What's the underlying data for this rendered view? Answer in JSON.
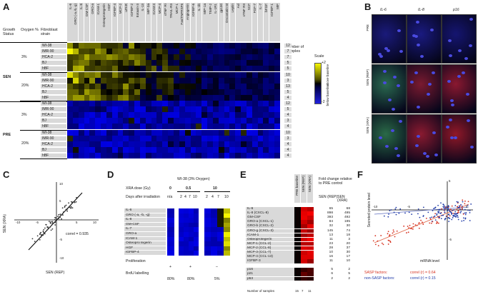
{
  "panels": [
    "A",
    "B",
    "C",
    "D",
    "E",
    "F"
  ],
  "A": {
    "headers": {
      "growth_status": "Growth Status",
      "oxygen": "Oxygen %",
      "fibroblast": "Fibroblast strain",
      "num_samples": "Number of samples"
    },
    "columns": [
      "IL-6",
      "GRO (-a,-b,-g)",
      "IL-8",
      "GM-CSF",
      "GRO-a",
      "ICAM-1",
      "Osteoprotegerin",
      "HGF",
      "IGFBP-4",
      "MCP-2",
      "uPAR",
      "IGFBP-2",
      "Eotaxin-3",
      "IL-13",
      "MIP-3a",
      "ICAM-3",
      "MCP-4",
      "sTNF RI",
      "TRAIL-R3",
      "MCP-1",
      "Fas/TNFRSF6",
      "Angiogenin",
      "IGFBP-6",
      "IL-1b",
      "MIP-1a",
      "TIMP-2",
      "IL-1R1",
      "gp130",
      "Oncostatin M",
      "Leptin",
      "Axl",
      "sTNF RII",
      "SCF",
      "FGF-7",
      "IL-7",
      "bFGF",
      "IGFBP-1",
      "MIF"
    ],
    "groups": [
      {
        "status": "SEN",
        "oxygen": "3%",
        "strains": [
          "WI-38",
          "IMR-90",
          "HCA-2",
          "BJ",
          "hBF"
        ],
        "counts": [
          "12",
          "7",
          "7",
          "5",
          "5"
        ]
      },
      {
        "status": "SEN",
        "oxygen": "20%",
        "strains": [
          "WI-38",
          "IMR-90",
          "HCA-2",
          "BJ",
          "hBF"
        ],
        "counts": [
          "10",
          "3",
          "13",
          "5",
          "4"
        ]
      },
      {
        "status": "PRE",
        "oxygen": "3%",
        "strains": [
          "WI-38",
          "IMR-90",
          "HCA-2",
          "BJ",
          "hBF"
        ],
        "counts": [
          "12",
          "5",
          "4",
          "3",
          "4"
        ]
      },
      {
        "status": "PRE",
        "oxygen": "20%",
        "strains": [
          "WI-38",
          "IMR-90",
          "HCA-2",
          "BJ",
          "hBF"
        ],
        "counts": [
          "10",
          "3",
          "4",
          "4",
          "4"
        ]
      }
    ],
    "scale": {
      "title": "Scale",
      "top": "+2",
      "bottom": "-2",
      "above": "above baseline",
      "below": "below baseline"
    }
  },
  "B": {
    "columns": [
      "IL-6",
      "IL-8",
      "p16"
    ],
    "rows": [
      "PRE",
      "SEN (REP)",
      "SEN (XRA)"
    ]
  },
  "C": {
    "xlabel": "SEN (REP)",
    "ylabel": "SEN (XRA)",
    "annotation": "correl = 0.935",
    "ticks": [
      "-10",
      "-5",
      "5",
      "10"
    ]
  },
  "D": {
    "title": "WI-38 (3% Oxygen)",
    "xra_label": "XRA dose (Gy)",
    "doses": [
      "0",
      "0.5",
      "10"
    ],
    "days_label": "Days after irradiation",
    "days": [
      "n/a",
      "2",
      "4",
      "7",
      "10",
      "2",
      "4",
      "7",
      "10"
    ],
    "genes": [
      "IL-6",
      "GRO (-a, -b, -g)",
      "IL-8",
      "GM-CSF",
      "IL-7",
      "GRO-a",
      "ICAM-1",
      "Osteopro tegerin",
      "HGF",
      "IGFBP-4"
    ],
    "proliferation_label": "Proliferation",
    "proliferation": [
      "+",
      "+",
      "–"
    ],
    "brdu_label": "BrdU labelling",
    "brdu": [
      "80%",
      "80%",
      "5%"
    ]
  },
  "E": {
    "col_headers": [
      "PRE baseline",
      "SEN (REP)",
      "SEN (XRA)"
    ],
    "fold_title": "Fold change relative to PRE control",
    "fold_cols": [
      "SEN (REP)",
      "SEN (XRA)"
    ],
    "genes": [
      {
        "name": "IL-6",
        "rep": "65",
        "xra": "68"
      },
      {
        "name": "IL-8       (CXCL-8)",
        "rep": "898",
        "xra": "495"
      },
      {
        "name": "GM-CSF",
        "rep": "393",
        "xra": "492"
      },
      {
        "name": "GRO-a (CXCL-1)",
        "rep": "84",
        "xra": "195"
      },
      {
        "name": "GRO-b (CXCL-2)",
        "rep": "32",
        "xra": "30"
      },
      {
        "name": "GRO-g (CXCL-3)",
        "rep": "145",
        "xra": "74"
      },
      {
        "name": "ICAM-1",
        "rep": "13",
        "xra": "18"
      },
      {
        "name": "Osteoprotegerin",
        "rep": "11",
        "xra": "3"
      },
      {
        "name": "MCP-1 (CCL-2)",
        "rep": "23",
        "xra": "20"
      },
      {
        "name": "MCP-2 (CCL-8)",
        "rep": "28",
        "xra": "37"
      },
      {
        "name": "MCP-3 (CCL-7)",
        "rep": "10",
        "xra": "30"
      },
      {
        "name": "MCP-4 (CCL-13)",
        "rep": "16",
        "xra": "17"
      },
      {
        "name": "IGFBP-3",
        "rep": "11",
        "xra": "10"
      }
    ],
    "controls": [
      {
        "name": "p16",
        "rep": "5",
        "xra": "2"
      },
      {
        "name": "p21",
        "rep": "6",
        "xra": "5"
      },
      {
        "name": "p53",
        "rep": "2",
        "xra": "2"
      }
    ],
    "num_samples_label": "Number of samples",
    "num_samples": [
      "15",
      "7",
      "11"
    ]
  },
  "F": {
    "ylabel": "Secreted protein level",
    "xlabel": "mRNA level",
    "ticks": [
      "-10",
      "-5",
      "5",
      "-5"
    ],
    "y_top": "5",
    "legend": [
      {
        "label": "SASP factors:",
        "correl": "correl (r) = 0.64",
        "color": "#d6301e"
      },
      {
        "label": "non-SASP factors:",
        "correl": "correl (r) = 0.15",
        "color": "#1f3aa8"
      }
    ]
  }
}
